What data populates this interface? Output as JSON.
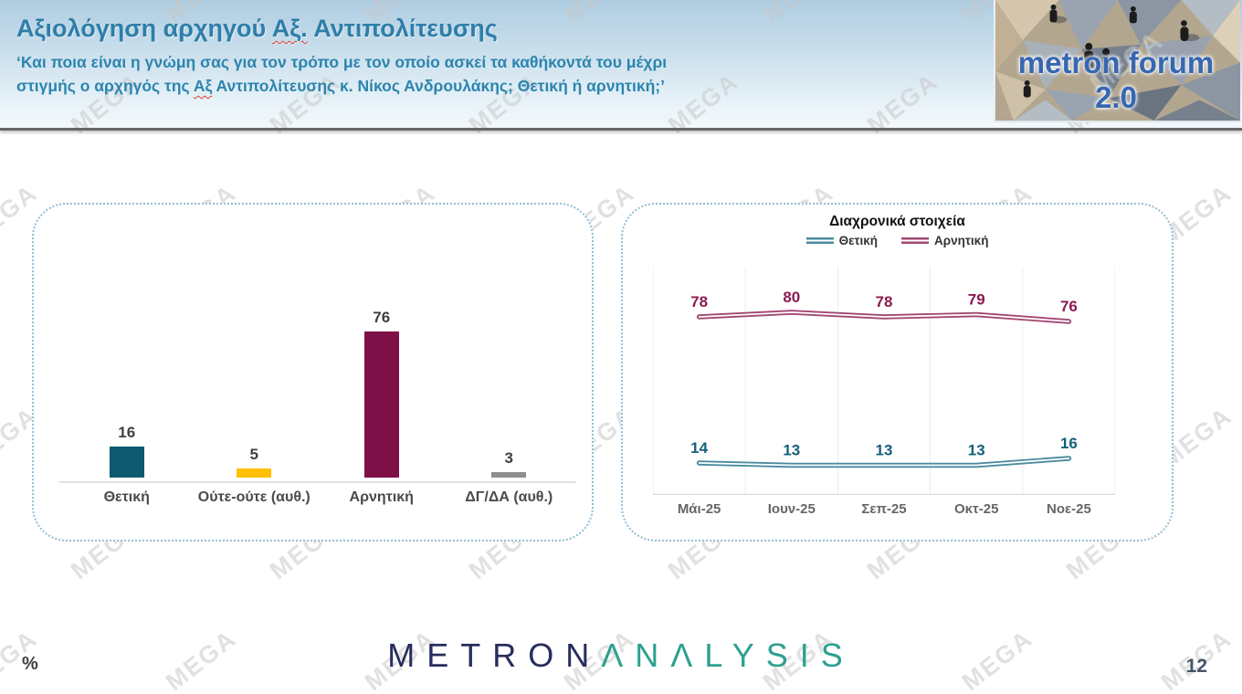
{
  "page": {
    "number": "12",
    "unit_label": "%",
    "watermark": "MEGA"
  },
  "header": {
    "title": {
      "pre": "Αξιολόγηση αρχηγού ",
      "misspelled": "Αξ.",
      "post": " Αντιπολίτευσης"
    },
    "subtitle_line1": "‘Και ποια είναι η γνώμη σας για τον τρόπο με τον οποίο ασκεί τα καθήκοντά του μέχρι",
    "subtitle_line2": {
      "pre": "στιγμής ο αρχηγός της ",
      "misspelled": "Αξ",
      "post": " Αντιπολίτευσης κ. Νίκος Ανδρουλάκης; Θετική ή αρνητική;’"
    },
    "logo_text": "metron forum 2.0",
    "title_color": "#2e7ea9"
  },
  "footer": {
    "brand_part1": "METRON",
    "brand_part2": "ΛNΛLYSIS",
    "brand_color1": "#272e5d",
    "brand_color2": "#2da18f"
  },
  "chart_data": [
    {
      "type": "bar",
      "title": "",
      "categories": [
        "Θετική",
        "Ούτε-ούτε (αυθ.)",
        "Αρνητική",
        "ΔΓ/ΔΑ (αυθ.)"
      ],
      "values": [
        16,
        5,
        76,
        3
      ],
      "colors": [
        "#0e5a70",
        "#ffc000",
        "#7e1048",
        "#8e8e8e"
      ],
      "ylim": [
        0,
        100
      ],
      "grid": false,
      "value_labels": true,
      "xlabel": "",
      "ylabel": "%"
    },
    {
      "type": "line",
      "title": "Διαχρονικά στοιχεία",
      "categories": [
        "Μάι-25",
        "Ιουν-25",
        "Σεπ-25",
        "Οκτ-25",
        "Νοε-25"
      ],
      "series": [
        {
          "name": "Θετική",
          "values": [
            14,
            13,
            13,
            13,
            16
          ],
          "color": "#4b8ba0",
          "label_color": "#15607a"
        },
        {
          "name": "Αρνητική",
          "values": [
            78,
            80,
            78,
            79,
            76
          ],
          "color": "#a34770",
          "label_color": "#8c1a50"
        }
      ],
      "ylim": [
        0,
        100
      ],
      "grid": "vertical",
      "legend_position": "top",
      "xlabel": "",
      "ylabel": "%"
    }
  ]
}
